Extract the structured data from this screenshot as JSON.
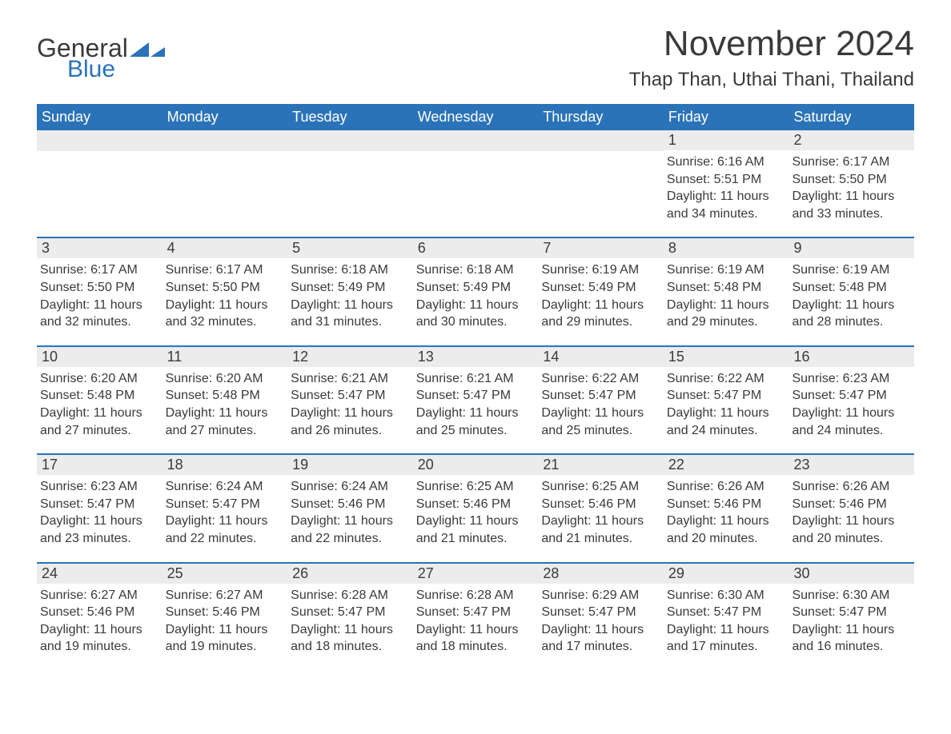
{
  "brand": {
    "word1": "General",
    "word2": "Blue",
    "word1_color": "#3a3a3a",
    "word2_color": "#2b73b8",
    "icon_color": "#2b73b8"
  },
  "title": "November 2024",
  "location": "Thap Than, Uthai Thani, Thailand",
  "colors": {
    "header_bg": "#2b73b8",
    "header_text": "#ffffff",
    "daynum_bg": "#ececec",
    "text": "#3a3a3a",
    "row_border": "#2b73b8",
    "page_bg": "#ffffff"
  },
  "typography": {
    "title_fontsize": 44,
    "location_fontsize": 24,
    "weekday_fontsize": 18,
    "daynum_fontsize": 18,
    "detail_fontsize": 16
  },
  "layout": {
    "columns": 7,
    "rows": 5,
    "first_day_column_index": 5
  },
  "weekdays": [
    "Sunday",
    "Monday",
    "Tuesday",
    "Wednesday",
    "Thursday",
    "Friday",
    "Saturday"
  ],
  "days": [
    {
      "n": 1,
      "sunrise": "6:16 AM",
      "sunset": "5:51 PM",
      "daylight": "11 hours and 34 minutes."
    },
    {
      "n": 2,
      "sunrise": "6:17 AM",
      "sunset": "5:50 PM",
      "daylight": "11 hours and 33 minutes."
    },
    {
      "n": 3,
      "sunrise": "6:17 AM",
      "sunset": "5:50 PM",
      "daylight": "11 hours and 32 minutes."
    },
    {
      "n": 4,
      "sunrise": "6:17 AM",
      "sunset": "5:50 PM",
      "daylight": "11 hours and 32 minutes."
    },
    {
      "n": 5,
      "sunrise": "6:18 AM",
      "sunset": "5:49 PM",
      "daylight": "11 hours and 31 minutes."
    },
    {
      "n": 6,
      "sunrise": "6:18 AM",
      "sunset": "5:49 PM",
      "daylight": "11 hours and 30 minutes."
    },
    {
      "n": 7,
      "sunrise": "6:19 AM",
      "sunset": "5:49 PM",
      "daylight": "11 hours and 29 minutes."
    },
    {
      "n": 8,
      "sunrise": "6:19 AM",
      "sunset": "5:48 PM",
      "daylight": "11 hours and 29 minutes."
    },
    {
      "n": 9,
      "sunrise": "6:19 AM",
      "sunset": "5:48 PM",
      "daylight": "11 hours and 28 minutes."
    },
    {
      "n": 10,
      "sunrise": "6:20 AM",
      "sunset": "5:48 PM",
      "daylight": "11 hours and 27 minutes."
    },
    {
      "n": 11,
      "sunrise": "6:20 AM",
      "sunset": "5:48 PM",
      "daylight": "11 hours and 27 minutes."
    },
    {
      "n": 12,
      "sunrise": "6:21 AM",
      "sunset": "5:47 PM",
      "daylight": "11 hours and 26 minutes."
    },
    {
      "n": 13,
      "sunrise": "6:21 AM",
      "sunset": "5:47 PM",
      "daylight": "11 hours and 25 minutes."
    },
    {
      "n": 14,
      "sunrise": "6:22 AM",
      "sunset": "5:47 PM",
      "daylight": "11 hours and 25 minutes."
    },
    {
      "n": 15,
      "sunrise": "6:22 AM",
      "sunset": "5:47 PM",
      "daylight": "11 hours and 24 minutes."
    },
    {
      "n": 16,
      "sunrise": "6:23 AM",
      "sunset": "5:47 PM",
      "daylight": "11 hours and 24 minutes."
    },
    {
      "n": 17,
      "sunrise": "6:23 AM",
      "sunset": "5:47 PM",
      "daylight": "11 hours and 23 minutes."
    },
    {
      "n": 18,
      "sunrise": "6:24 AM",
      "sunset": "5:47 PM",
      "daylight": "11 hours and 22 minutes."
    },
    {
      "n": 19,
      "sunrise": "6:24 AM",
      "sunset": "5:46 PM",
      "daylight": "11 hours and 22 minutes."
    },
    {
      "n": 20,
      "sunrise": "6:25 AM",
      "sunset": "5:46 PM",
      "daylight": "11 hours and 21 minutes."
    },
    {
      "n": 21,
      "sunrise": "6:25 AM",
      "sunset": "5:46 PM",
      "daylight": "11 hours and 21 minutes."
    },
    {
      "n": 22,
      "sunrise": "6:26 AM",
      "sunset": "5:46 PM",
      "daylight": "11 hours and 20 minutes."
    },
    {
      "n": 23,
      "sunrise": "6:26 AM",
      "sunset": "5:46 PM",
      "daylight": "11 hours and 20 minutes."
    },
    {
      "n": 24,
      "sunrise": "6:27 AM",
      "sunset": "5:46 PM",
      "daylight": "11 hours and 19 minutes."
    },
    {
      "n": 25,
      "sunrise": "6:27 AM",
      "sunset": "5:46 PM",
      "daylight": "11 hours and 19 minutes."
    },
    {
      "n": 26,
      "sunrise": "6:28 AM",
      "sunset": "5:47 PM",
      "daylight": "11 hours and 18 minutes."
    },
    {
      "n": 27,
      "sunrise": "6:28 AM",
      "sunset": "5:47 PM",
      "daylight": "11 hours and 18 minutes."
    },
    {
      "n": 28,
      "sunrise": "6:29 AM",
      "sunset": "5:47 PM",
      "daylight": "11 hours and 17 minutes."
    },
    {
      "n": 29,
      "sunrise": "6:30 AM",
      "sunset": "5:47 PM",
      "daylight": "11 hours and 17 minutes."
    },
    {
      "n": 30,
      "sunrise": "6:30 AM",
      "sunset": "5:47 PM",
      "daylight": "11 hours and 16 minutes."
    }
  ],
  "labels": {
    "sunrise": "Sunrise:",
    "sunset": "Sunset:",
    "daylight": "Daylight:"
  }
}
